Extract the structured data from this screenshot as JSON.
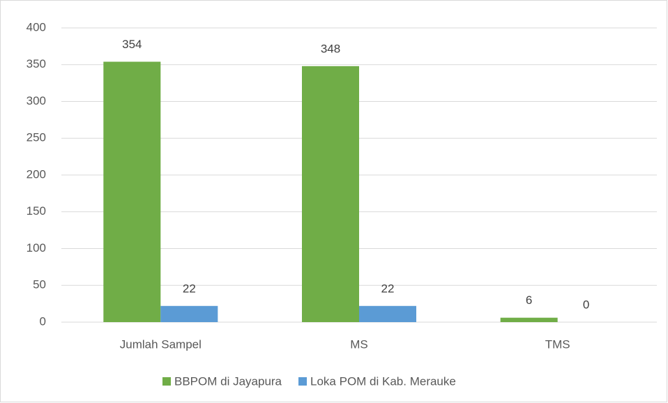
{
  "chart_data": {
    "type": "bar",
    "categories": [
      "Jumlah Sampel",
      "MS",
      "TMS"
    ],
    "series": [
      {
        "name": "BBPOM di Jayapura",
        "color": "#70ad47",
        "values": [
          354,
          348,
          6
        ]
      },
      {
        "name": "Loka POM di Kab. Merauke",
        "color": "#5b9bd5",
        "values": [
          22,
          22,
          0
        ]
      }
    ],
    "ylim": [
      0,
      400
    ],
    "yticks": [
      0,
      50,
      100,
      150,
      200,
      250,
      300,
      350,
      400
    ],
    "grid": true,
    "legend": "bottom"
  }
}
